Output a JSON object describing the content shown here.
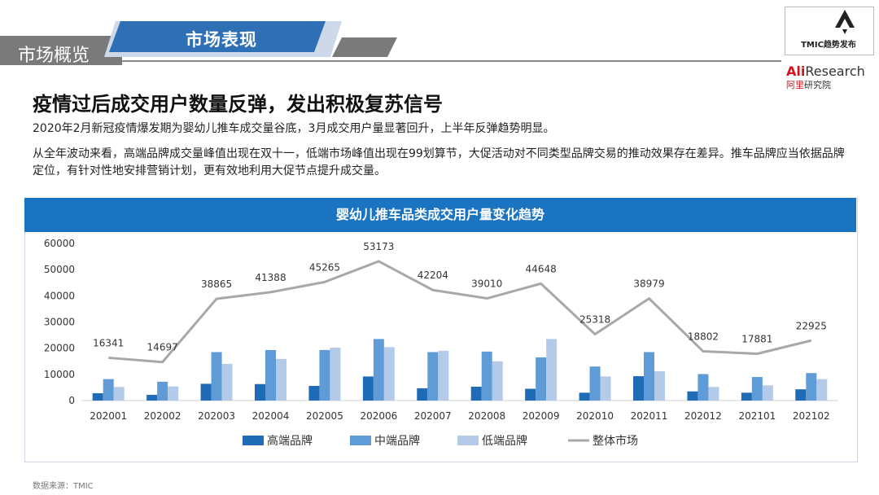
{
  "header": {
    "section_label": "市场概览",
    "tab_title": "市场表现",
    "logo_tmic_text": "TMIC趋势发布",
    "logo_ali_en_red": "Ali",
    "logo_ali_en_rest": "Research",
    "logo_ali_cn_red": "阿里",
    "logo_ali_cn_rest": "研究院"
  },
  "headline": "疫情过后成交用户数量反弹，发出积极复苏信号",
  "paragraphs": {
    "p1": "2020年2月新冠疫情爆发期为婴幼儿推车成交量谷底，3月成交用户量显著回升，上半年反弹趋势明显。",
    "p2": "从全年波动来看，高端品牌成交量峰值出现在双十一，低端市场峰值出现在99划算节，大促活动对不同类型品牌交易的推动效果存在差异。推车品牌应当依据品牌定位，有针对性地安排营销计划，更有效地利用大促节点提升成交量。"
  },
  "source": "数据来源：TMIC",
  "colors": {
    "high": "#1f6bb5",
    "mid": "#5f9bd6",
    "low": "#b3cbe8",
    "total": "#a8a8a8",
    "title_bar": "#1b74c2"
  },
  "chart_data": {
    "type": "bar",
    "title": "婴幼儿推车品类成交用户量变化趋势",
    "categories": [
      "202001",
      "202002",
      "202003",
      "202004",
      "202005",
      "202006",
      "202007",
      "202008",
      "202009",
      "202010",
      "202011",
      "202012",
      "202101",
      "202102"
    ],
    "ylim": [
      0,
      60000
    ],
    "yticks": [
      0,
      10000,
      20000,
      30000,
      40000,
      50000,
      60000
    ],
    "legend_position": "bottom",
    "series": [
      {
        "name": "高端品牌",
        "kind": "bar",
        "values": [
          2800,
          2200,
          6400,
          6300,
          5600,
          9200,
          4700,
          5300,
          4500,
          3000,
          9300,
          3500,
          3000,
          4300
        ]
      },
      {
        "name": "中端品牌",
        "kind": "bar",
        "values": [
          8200,
          7200,
          18500,
          19300,
          19300,
          23500,
          18500,
          18700,
          16500,
          13000,
          18500,
          10100,
          9000,
          10500
        ]
      },
      {
        "name": "低端品牌",
        "kind": "bar",
        "values": [
          5200,
          5400,
          14000,
          15900,
          20200,
          20400,
          19000,
          15000,
          23500,
          9200,
          11200,
          5200,
          5800,
          8200
        ]
      },
      {
        "name": "整体市场",
        "kind": "line",
        "values": [
          16341,
          14697,
          38865,
          41388,
          45265,
          53173,
          42204,
          39010,
          44648,
          25318,
          38979,
          18802,
          17881,
          22925
        ]
      }
    ]
  }
}
